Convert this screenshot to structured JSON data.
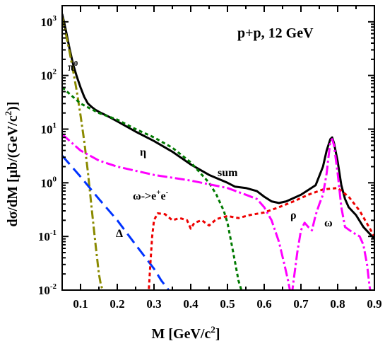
{
  "chart_data": {
    "type": "line",
    "title": "p+p,  12 GeV",
    "xlabel_main": "M  [GeV/c",
    "xlabel_sup": "2",
    "xlabel_end": "]",
    "ylabel_main": "dσ/dM  [μb/(GeV/c",
    "ylabel_sup": "2",
    "ylabel_end": ")]",
    "xlim": [
      0.05,
      0.9
    ],
    "ylim": [
      0.01,
      2000
    ],
    "yscale": "log",
    "xticks": [
      "0.1",
      "0.2",
      "0.3",
      "0.4",
      "0.5",
      "0.6",
      "0.7",
      "0.8",
      "0.9"
    ],
    "xtick_values": [
      0.1,
      0.2,
      0.3,
      0.4,
      0.5,
      0.6,
      0.7,
      0.8,
      0.9
    ],
    "yticks": [
      {
        "base": "10",
        "exp": "-2",
        "value": 0.01
      },
      {
        "base": "10",
        "exp": "-1",
        "value": 0.1
      },
      {
        "base": "10",
        "exp": "0",
        "value": 1
      },
      {
        "base": "10",
        "exp": "1",
        "value": 10
      },
      {
        "base": "10",
        "exp": "2",
        "value": 100
      },
      {
        "base": "10",
        "exp": "3",
        "value": 1000
      }
    ],
    "grid": false,
    "series": [
      {
        "name": "sum",
        "color": "#000000",
        "dash": "",
        "width": 3,
        "x": [
          0.05,
          0.06,
          0.07,
          0.08,
          0.09,
          0.1,
          0.11,
          0.12,
          0.13,
          0.14,
          0.15,
          0.17,
          0.2,
          0.25,
          0.3,
          0.35,
          0.4,
          0.45,
          0.5,
          0.52,
          0.55,
          0.58,
          0.6,
          0.62,
          0.64,
          0.66,
          0.7,
          0.74,
          0.76,
          0.77,
          0.78,
          0.785,
          0.79,
          0.8,
          0.81,
          0.82,
          0.83,
          0.85,
          0.87,
          0.9
        ],
        "y": [
          1400,
          700,
          320,
          160,
          95,
          60,
          40,
          30,
          26,
          23,
          21,
          18,
          14,
          9,
          6,
          3.8,
          2.2,
          1.4,
          1.0,
          0.85,
          0.8,
          0.7,
          0.55,
          0.45,
          0.42,
          0.45,
          0.6,
          0.9,
          2,
          4,
          6.5,
          7,
          5.5,
          2.5,
          0.9,
          0.5,
          0.35,
          0.25,
          0.15,
          0.09
        ]
      },
      {
        "name": "π",
        "color": "#8a8a00",
        "dash": "12,4,3,4",
        "width": 3,
        "x": [
          0.05,
          0.06,
          0.07,
          0.08,
          0.09,
          0.1,
          0.11,
          0.12,
          0.13,
          0.14,
          0.15,
          0.155,
          0.16
        ],
        "y": [
          1200,
          600,
          280,
          120,
          50,
          18,
          6,
          1.6,
          0.35,
          0.08,
          0.02,
          0.013,
          0.01
        ]
      },
      {
        "name": "η",
        "color": "#007a00",
        "dash": "5,4",
        "width": 3,
        "x": [
          0.05,
          0.1,
          0.15,
          0.2,
          0.25,
          0.3,
          0.35,
          0.4,
          0.45,
          0.47,
          0.49,
          0.5,
          0.51,
          0.52,
          0.53,
          0.54
        ],
        "y": [
          60,
          30,
          20,
          15,
          10,
          7,
          4.5,
          2.4,
          1.0,
          0.6,
          0.3,
          0.18,
          0.08,
          0.035,
          0.015,
          0.009
        ]
      },
      {
        "name": "ω->e⁺e⁻",
        "color": "#ff00ff",
        "dash": "14,4,3,4",
        "width": 3,
        "x": [
          0.05,
          0.1,
          0.15,
          0.2,
          0.3,
          0.4,
          0.5,
          0.55,
          0.58,
          0.6,
          0.62,
          0.64,
          0.655,
          0.665,
          0.67,
          0.675
        ],
        "y": [
          8,
          4,
          2.6,
          2.0,
          1.4,
          1.1,
          0.8,
          0.6,
          0.5,
          0.35,
          0.2,
          0.08,
          0.03,
          0.015,
          0.01,
          0.008
        ]
      },
      {
        "name": "Δ",
        "color": "#0033ff",
        "dash": "16,8",
        "width": 3,
        "x": [
          0.05,
          0.1,
          0.15,
          0.2,
          0.25,
          0.3,
          0.32,
          0.34,
          0.35
        ],
        "y": [
          3.2,
          1.3,
          0.5,
          0.2,
          0.07,
          0.025,
          0.015,
          0.01,
          0.008
        ]
      },
      {
        "name": "ρ",
        "color": "#ee0000",
        "dash": "5,4",
        "width": 3,
        "x": [
          0.285,
          0.29,
          0.295,
          0.3,
          0.31,
          0.33,
          0.35,
          0.37,
          0.39,
          0.4,
          0.41,
          0.43,
          0.45,
          0.47,
          0.5,
          0.53,
          0.56,
          0.6,
          0.64,
          0.68,
          0.72,
          0.76,
          0.8,
          0.83,
          0.86,
          0.9
        ],
        "y": [
          0.008,
          0.03,
          0.1,
          0.2,
          0.27,
          0.26,
          0.2,
          0.22,
          0.2,
          0.14,
          0.18,
          0.2,
          0.16,
          0.21,
          0.24,
          0.22,
          0.25,
          0.28,
          0.35,
          0.45,
          0.6,
          0.75,
          0.8,
          0.55,
          0.3,
          0.1
        ]
      },
      {
        "name": "ω",
        "color": "#ff00ff",
        "dash": "14,4,3,4",
        "width": 3,
        "x": [
          0.675,
          0.68,
          0.69,
          0.7,
          0.71,
          0.72,
          0.73,
          0.74,
          0.75,
          0.76,
          0.77,
          0.775,
          0.78,
          0.785,
          0.79,
          0.8,
          0.81,
          0.82,
          0.84,
          0.86,
          0.87,
          0.88,
          0.885,
          0.89
        ],
        "y": [
          0.008,
          0.015,
          0.05,
          0.13,
          0.18,
          0.15,
          0.13,
          0.25,
          0.4,
          0.6,
          1.5,
          3,
          5.8,
          6.5,
          5,
          1.5,
          0.35,
          0.15,
          0.12,
          0.1,
          0.07,
          0.03,
          0.015,
          0.008
        ]
      }
    ],
    "annotations": {
      "pi": "π",
      "pi_sup": "0",
      "eta": "η",
      "sum": "sum",
      "omega_ee_main": "ω->e",
      "omega_ee_sup1": "+",
      "omega_ee_mid": "e",
      "omega_ee_sup2": "-",
      "delta": "Δ",
      "rho": "ρ",
      "omega": "ω"
    }
  }
}
